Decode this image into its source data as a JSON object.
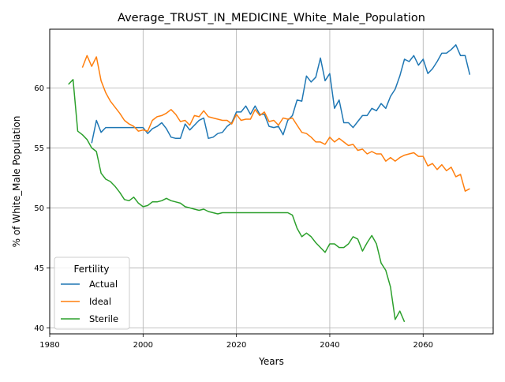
{
  "chart_data": {
    "type": "line",
    "title": "Average_TRUST_IN_MEDICINE_White_Male_Population",
    "xlabel": "Years",
    "ylabel": "% of White_Male Population",
    "xlim": [
      1980,
      2075
    ],
    "ylim": [
      39.5,
      64.9
    ],
    "xticks": [
      1980,
      2000,
      2020,
      2040,
      2060
    ],
    "yticks": [
      40,
      45,
      50,
      55,
      60
    ],
    "grid": true,
    "legend": {
      "title": "Fertility",
      "placement": "lower-left"
    },
    "series": [
      {
        "name": "Actual",
        "color": "#1f77b4",
        "x": [
          1989,
          1990,
          1991,
          1992,
          1993,
          1994,
          1995,
          1996,
          1997,
          1998,
          1999,
          2000,
          2001,
          2002,
          2003,
          2004,
          2005,
          2006,
          2007,
          2008,
          2009,
          2010,
          2011,
          2012,
          2013,
          2014,
          2015,
          2016,
          2017,
          2018,
          2019,
          2020,
          2021,
          2022,
          2023,
          2024,
          2025,
          2026,
          2027,
          2028,
          2029,
          2030,
          2031,
          2032,
          2033,
          2034,
          2035,
          2036,
          2037,
          2038,
          2039,
          2040,
          2041,
          2042,
          2043,
          2044,
          2045,
          2046,
          2047,
          2048,
          2049,
          2050,
          2051,
          2052,
          2053,
          2054,
          2055,
          2056,
          2057,
          2058,
          2059,
          2060,
          2061,
          2062,
          2063,
          2064,
          2065,
          2066,
          2067,
          2068,
          2069,
          2070
        ],
        "values": [
          55.4,
          57.3,
          56.3,
          56.7,
          56.7,
          56.7,
          56.7,
          56.7,
          56.7,
          56.7,
          56.7,
          56.7,
          56.2,
          56.6,
          56.8,
          57.1,
          56.6,
          55.9,
          55.8,
          55.8,
          57.0,
          56.5,
          56.9,
          57.3,
          57.5,
          55.8,
          55.9,
          56.2,
          56.3,
          56.8,
          57.1,
          58.0,
          58.0,
          58.5,
          57.8,
          58.5,
          57.8,
          57.8,
          56.8,
          56.7,
          56.8,
          56.1,
          57.3,
          57.7,
          59.0,
          58.9,
          61.0,
          60.5,
          60.9,
          62.5,
          60.6,
          61.2,
          58.3,
          59.0,
          57.1,
          57.1,
          56.7,
          57.2,
          57.7,
          57.7,
          58.3,
          58.1,
          58.7,
          58.3,
          59.3,
          59.9,
          61.0,
          62.4,
          62.2,
          62.7,
          61.9,
          62.4,
          61.2,
          61.6,
          62.2,
          62.9,
          62.9,
          63.2,
          63.6,
          62.7,
          62.7,
          61.1
        ]
      },
      {
        "name": "Ideal",
        "color": "#ff7f0e",
        "x": [
          1987,
          1988,
          1989,
          1990,
          1991,
          1992,
          1993,
          1994,
          1995,
          1996,
          1997,
          1998,
          1999,
          2000,
          2001,
          2002,
          2003,
          2004,
          2005,
          2006,
          2007,
          2008,
          2009,
          2010,
          2011,
          2012,
          2013,
          2014,
          2015,
          2016,
          2017,
          2018,
          2019,
          2020,
          2021,
          2022,
          2023,
          2024,
          2025,
          2026,
          2027,
          2028,
          2029,
          2030,
          2031,
          2032,
          2033,
          2034,
          2035,
          2036,
          2037,
          2038,
          2039,
          2040,
          2041,
          2042,
          2043,
          2044,
          2045,
          2046,
          2047,
          2048,
          2049,
          2050,
          2051,
          2052,
          2053,
          2054,
          2055,
          2056,
          2057,
          2058,
          2059,
          2060,
          2061,
          2062,
          2063,
          2064,
          2065,
          2066,
          2067,
          2068,
          2069,
          2070
        ],
        "values": [
          61.7,
          62.7,
          61.8,
          62.6,
          60.6,
          59.6,
          58.9,
          58.4,
          57.9,
          57.3,
          57.0,
          56.8,
          56.4,
          56.5,
          56.4,
          57.3,
          57.6,
          57.7,
          57.9,
          58.2,
          57.8,
          57.2,
          57.3,
          56.9,
          57.7,
          57.6,
          58.1,
          57.6,
          57.5,
          57.4,
          57.3,
          57.3,
          57.0,
          57.8,
          57.3,
          57.4,
          57.4,
          58.2,
          57.7,
          58.0,
          57.2,
          57.3,
          56.9,
          57.5,
          57.4,
          57.5,
          56.9,
          56.3,
          56.2,
          55.9,
          55.5,
          55.5,
          55.3,
          55.9,
          55.5,
          55.8,
          55.5,
          55.2,
          55.3,
          54.8,
          54.9,
          54.5,
          54.7,
          54.5,
          54.5,
          53.9,
          54.2,
          53.9,
          54.2,
          54.4,
          54.5,
          54.6,
          54.3,
          54.3,
          53.5,
          53.7,
          53.2,
          53.6,
          53.1,
          53.4,
          52.6,
          52.8,
          51.4,
          51.6
        ]
      },
      {
        "name": "Sterile",
        "color": "#2ca02c",
        "x": [
          1984,
          1985,
          1986,
          1987,
          1988,
          1989,
          1990,
          1991,
          1992,
          1993,
          1994,
          1995,
          1996,
          1997,
          1998,
          1999,
          2000,
          2001,
          2002,
          2003,
          2004,
          2005,
          2006,
          2007,
          2008,
          2009,
          2010,
          2011,
          2012,
          2013,
          2014,
          2015,
          2016,
          2017,
          2018,
          2019,
          2020,
          2021,
          2022,
          2023,
          2024,
          2025,
          2026,
          2027,
          2028,
          2029,
          2030,
          2031,
          2032,
          2033,
          2034,
          2035,
          2036,
          2037,
          2038,
          2039,
          2040,
          2041,
          2042,
          2043,
          2044,
          2045,
          2046,
          2047,
          2048,
          2049,
          2050,
          2051,
          2052,
          2053,
          2054,
          2055,
          2056
        ],
        "values": [
          60.3,
          60.7,
          56.4,
          56.1,
          55.7,
          55.0,
          54.7,
          52.9,
          52.4,
          52.2,
          51.8,
          51.3,
          50.7,
          50.6,
          50.9,
          50.4,
          50.1,
          50.2,
          50.5,
          50.5,
          50.6,
          50.8,
          50.6,
          50.5,
          50.4,
          50.1,
          50.0,
          49.9,
          49.8,
          49.9,
          49.7,
          49.6,
          49.5,
          49.6,
          49.6,
          49.6,
          49.6,
          49.6,
          49.6,
          49.6,
          49.6,
          49.6,
          49.6,
          49.6,
          49.6,
          49.6,
          49.6,
          49.6,
          49.4,
          48.3,
          47.6,
          47.9,
          47.6,
          47.1,
          46.7,
          46.3,
          47.0,
          47.0,
          46.7,
          46.7,
          47.0,
          47.6,
          47.4,
          46.4,
          47.1,
          47.7,
          47.0,
          45.4,
          44.8,
          43.4,
          40.7,
          41.4,
          40.5
        ]
      }
    ]
  }
}
